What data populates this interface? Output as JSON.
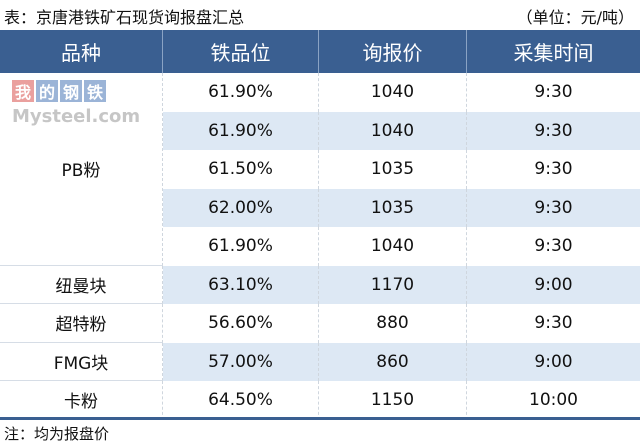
{
  "title": "表：京唐港铁矿石现货询报盘汇总",
  "unit": "（单位：元/吨）",
  "headers": [
    "品种",
    "铁品位",
    "询报价",
    "采集时间"
  ],
  "rows": [
    {
      "grade": "61.90%",
      "price": "1040",
      "time": "9:30"
    },
    {
      "grade": "61.90%",
      "price": "1040",
      "time": "9:30"
    },
    {
      "grade": "61.50%",
      "price": "1035",
      "time": "9:30"
    },
    {
      "grade": "62.00%",
      "price": "1035",
      "time": "9:30"
    },
    {
      "grade": "61.90%",
      "price": "1040",
      "time": "9:30"
    },
    {
      "product": "纽曼块",
      "grade": "63.10%",
      "price": "1170",
      "time": "9:00"
    },
    {
      "product": "超特粉",
      "grade": "56.60%",
      "price": "880",
      "time": "9:30"
    },
    {
      "product": "FMG块",
      "grade": "57.00%",
      "price": "860",
      "time": "9:00"
    },
    {
      "product": "卡粉",
      "grade": "64.50%",
      "price": "1150",
      "time": "10:00"
    }
  ],
  "pb_product": "PB粉",
  "note": "注：均为报盘价",
  "watermark": {
    "chars": [
      "我",
      "的",
      "钢",
      "铁"
    ],
    "text": "Mysteel.com"
  },
  "colors": {
    "header": "#3a5f91",
    "stripe": "#dde8f4"
  }
}
